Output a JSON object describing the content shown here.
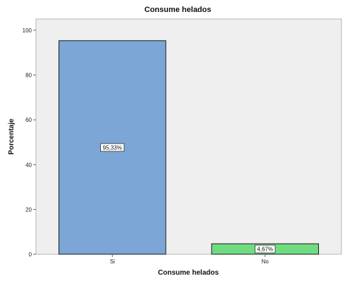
{
  "chart_data": {
    "type": "bar",
    "title": "Consume helados",
    "xlabel": "Consume helados",
    "ylabel": "Porcentaje",
    "categories": [
      "Si",
      "No"
    ],
    "values": [
      95.33,
      4.67
    ],
    "data_labels": [
      "95,33%",
      "4,67%"
    ],
    "yticks": [
      "0",
      "20",
      "40",
      "60",
      "80",
      "100"
    ],
    "ylim": [
      0,
      105
    ],
    "bar_colors": [
      "#7ba6d5",
      "#6fdc82"
    ],
    "plot_background": "#efefef",
    "grid": false,
    "legend": "none"
  }
}
